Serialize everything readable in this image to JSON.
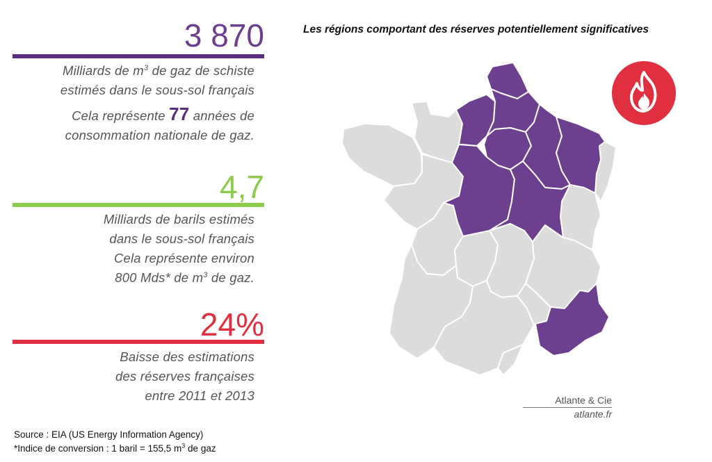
{
  "stats": [
    {
      "value": "3 870",
      "color": "#6d3f8f",
      "lines": [
        "Milliards de m",
        "3",
        " de gaz de schiste",
        "estimés dans le sous-sol français",
        "Cela représente ",
        "77",
        " années de",
        "consommation nationale de gaz."
      ]
    },
    {
      "value": "4,7",
      "color": "#8ccb4b",
      "lines": [
        "Milliards de barils estimés",
        "dans le sous-sol français",
        "Cela représente environ",
        "800 Mds* de m",
        "3",
        " de gaz."
      ]
    },
    {
      "value": "24%",
      "color": "#e03040",
      "lines": [
        "Baisse des estimations",
        "des réserves françaises",
        "entre 2011 et 2013"
      ]
    }
  ],
  "map": {
    "title": "Les régions comportant des réserves potentiellement significatives",
    "highlight_color": "#6d3f8f",
    "base_color": "#dcdcdc",
    "icon": "flame-icon",
    "icon_color": "#e03040"
  },
  "credit": {
    "name": "Atlante & Cie",
    "site": "atlante.fr"
  },
  "source": {
    "line1": "Source : EIA (US Energy Information Agency)",
    "line2a": "*Indice de conversion : 1 baril = 155,5 m",
    "line2sup": "3",
    "line2b": " de gaz"
  }
}
